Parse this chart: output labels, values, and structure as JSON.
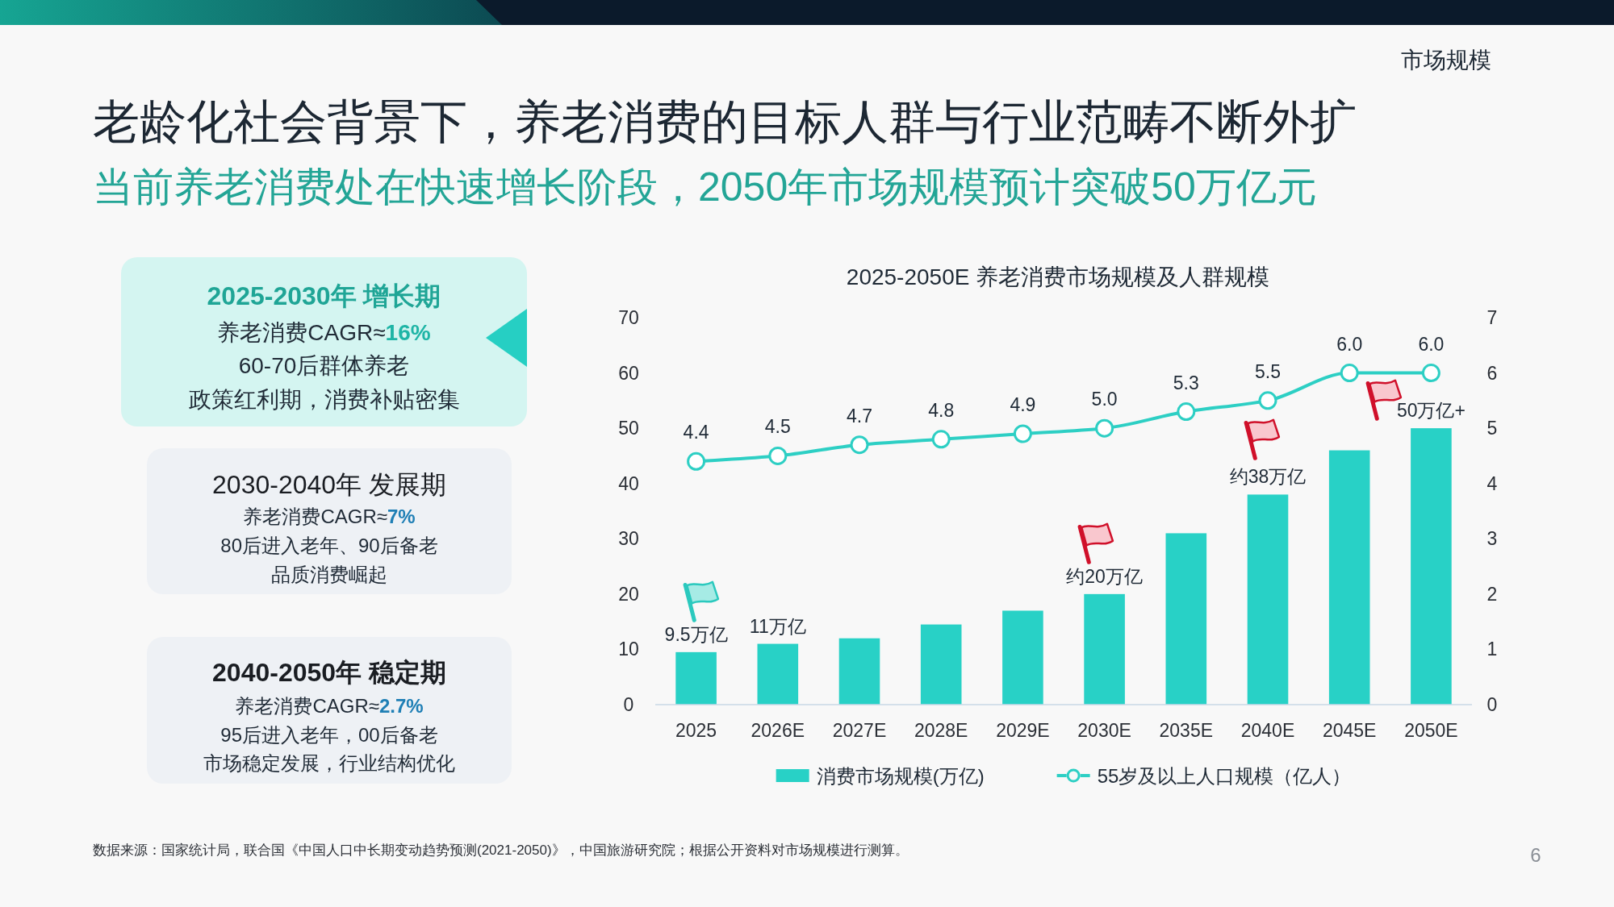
{
  "chart_data": [
    {
      "type": "other",
      "title": "老龄化社会背景下，养老消费的目标人群与行业范畴不断外扩",
      "subtitle": "当前养老消费处在快速增长阶段，2050年市场规模预计突破50万亿元",
      "annotations": [
        "市场规模"
      ]
    },
    {
      "type": "other",
      "title": "2025-2030年 增长期",
      "annotations": [
        "养老消费CAGR≈**16%**",
        "60-70后群体养老",
        "政策红利期，消费补贴密集"
      ]
    },
    {
      "type": "other",
      "title": "2030-2040年 发展期",
      "annotations": [
        "养老消费CAGR≈**7%**",
        "80后进入老年、90后备老",
        "品质消费崛起"
      ]
    },
    {
      "type": "other",
      "title": "2040-2050年 稳定期",
      "annotations": [
        "养老消费CAGR≈**2.7%**",
        "95后进入老年，00后备老",
        "市场稳定发展，行业结构优化"
      ]
    },
    {
      "type": "bar",
      "title": "2025-2050E 养老消费市场规模及人群规模",
      "categories": [
        "2025",
        "2026E",
        "2027E",
        "2028E",
        "2029E",
        "2030E",
        "2035E",
        "2040E",
        "2045E",
        "2050E"
      ],
      "series": [
        {
          "name": "消费市场规模(万亿)",
          "type": "bar",
          "color": "#28d1c6",
          "values": [
            9.5,
            11,
            12,
            14.5,
            17,
            20,
            31,
            38,
            46,
            50
          ],
          "value_labels": [
            "9.5万亿",
            "11万亿",
            null,
            null,
            null,
            "约20万亿",
            null,
            "约38万亿",
            null,
            "50万亿+"
          ]
        },
        {
          "name": "55岁及以上人口规模（亿人）",
          "type": "line",
          "axis": "y2",
          "color": "#2dcfc4",
          "marker": "circle",
          "values": [
            4.4,
            4.5,
            4.7,
            4.8,
            4.9,
            5.0,
            5.3,
            5.5,
            6.0,
            6.0
          ],
          "value_labels": [
            "4.4",
            "4.5",
            "4.7",
            "4.8",
            "4.9",
            "5.0",
            "5.3",
            "5.5",
            "6.0",
            "6.0"
          ]
        }
      ],
      "ylim": [
        0,
        70
      ],
      "yticks": [
        0,
        10,
        20,
        30,
        40,
        50,
        60,
        70
      ],
      "y2lim": [
        0,
        7
      ],
      "y2ticks": [
        0,
        1,
        2,
        3,
        4,
        5,
        6,
        7
      ],
      "legend": "bottom",
      "annotations": [
        "数据来源：国家统计局，联合国《中国人口中长期变动趋势预测(2021-2050)》，中国旅游研究院；根据公开资料对市场规模进行测算。",
        "6"
      ]
    }
  ]
}
